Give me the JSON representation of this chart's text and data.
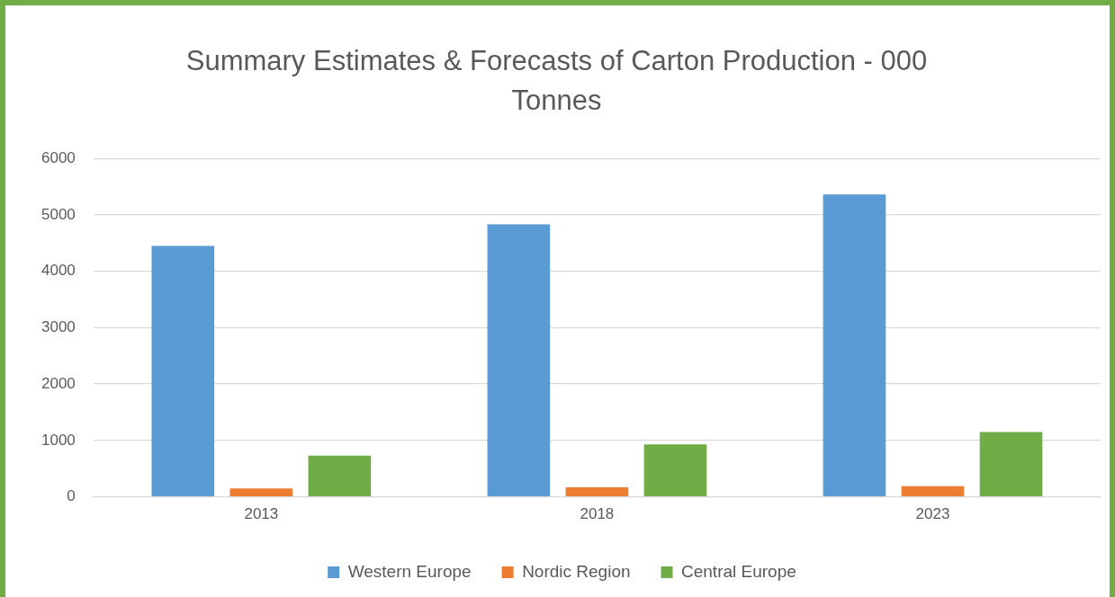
{
  "chart_data": {
    "type": "bar",
    "title": "Summary Estimates & Forecasts of Carton Production - 000 Tonnes",
    "categories": [
      "2013",
      "2018",
      "2023"
    ],
    "series": [
      {
        "name": "Western Europe",
        "color": "#5b9bd5",
        "values": [
          4450,
          4830,
          5360
        ]
      },
      {
        "name": "Nordic Region",
        "color": "#ed7d31",
        "values": [
          150,
          170,
          190
        ]
      },
      {
        "name": "Central Europe",
        "color": "#70ad47",
        "values": [
          730,
          930,
          1150
        ]
      }
    ],
    "ylim": [
      0,
      6000
    ],
    "yticks": [
      0,
      1000,
      2000,
      3000,
      4000,
      5000,
      6000
    ],
    "grid": "y",
    "legend": "bottom"
  }
}
